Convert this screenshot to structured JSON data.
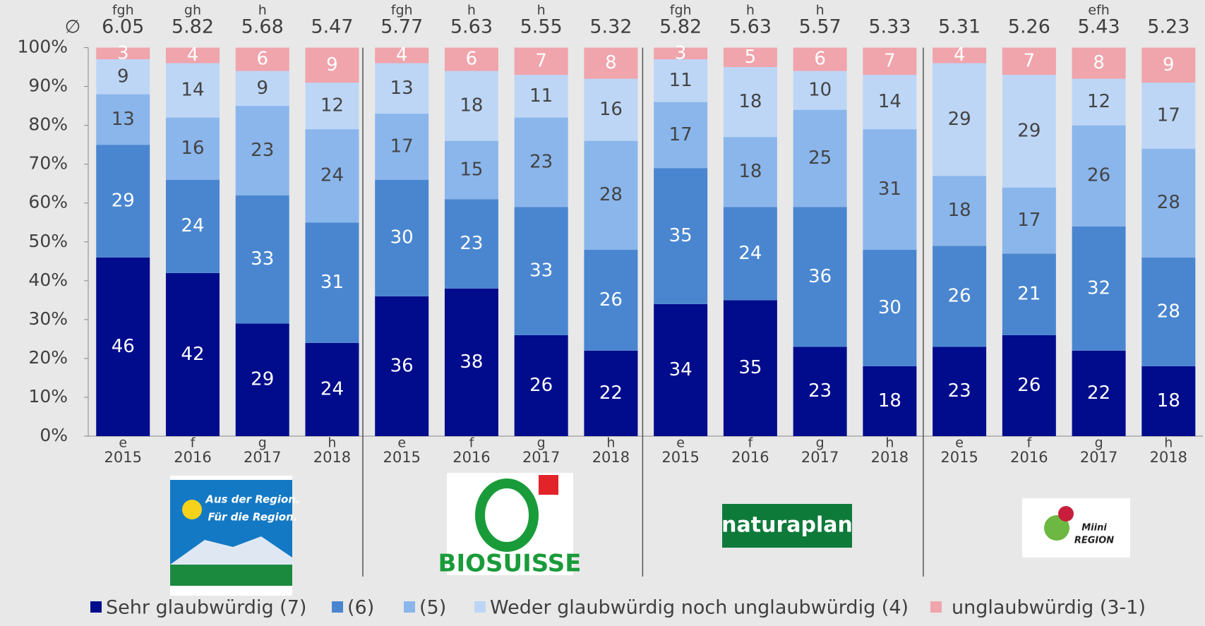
{
  "chart_data": {
    "type": "bar",
    "stacked": true,
    "mean_symbol": "∅",
    "categories": [
      "2015",
      "2016",
      "2017",
      "2018",
      "2015",
      "2016",
      "2017",
      "2018",
      "2015",
      "2016",
      "2017",
      "2018",
      "2015",
      "2016",
      "2017",
      "2018"
    ],
    "category_letters": [
      "e",
      "f",
      "g",
      "h",
      "e",
      "f",
      "g",
      "h",
      "e",
      "f",
      "g",
      "h",
      "e",
      "f",
      "g",
      "h"
    ],
    "means": [
      6.05,
      5.82,
      5.68,
      5.47,
      5.77,
      5.63,
      5.55,
      5.32,
      5.82,
      5.63,
      5.57,
      5.33,
      5.31,
      5.26,
      5.43,
      5.23
    ],
    "mean_letters": [
      "fgh",
      "gh",
      "h",
      null,
      "fgh",
      "h",
      "h",
      null,
      "fgh",
      "h",
      "h",
      null,
      null,
      null,
      "efh",
      null
    ],
    "groups": [
      {
        "logo_text": [
          "Aus der Region.",
          "Für die Region."
        ]
      },
      {
        "logo_text": [
          "BIOSUISSE"
        ]
      },
      {
        "logo_text": [
          "naturaplan"
        ]
      },
      {
        "logo_text": [
          "Miini",
          "REGION"
        ]
      }
    ],
    "series": [
      {
        "name": "Sehr glaubwürdig (7)",
        "color": "#000c8c",
        "label_color": "#ffffff",
        "values": [
          46,
          42,
          29,
          24,
          36,
          38,
          26,
          22,
          34,
          35,
          23,
          18,
          23,
          26,
          22,
          18
        ]
      },
      {
        "name": "(6)",
        "color": "#4a86d0",
        "label_color": "#ffffff",
        "values": [
          29,
          24,
          33,
          31,
          30,
          23,
          33,
          26,
          35,
          24,
          36,
          30,
          26,
          21,
          32,
          28
        ]
      },
      {
        "name": "(5)",
        "color": "#8ab6ec",
        "label_color": "#444444",
        "values": [
          13,
          16,
          23,
          24,
          17,
          15,
          23,
          28,
          17,
          18,
          25,
          31,
          18,
          17,
          26,
          28
        ]
      },
      {
        "name": "Weder glaubwürdig noch unglaubwürdig (4)",
        "color": "#bdd6f6",
        "label_color": "#444444",
        "values": [
          9,
          14,
          9,
          12,
          13,
          18,
          11,
          16,
          11,
          18,
          10,
          14,
          29,
          29,
          12,
          17
        ]
      },
      {
        "name": "unglaubwürdig (3-1)",
        "color": "#f0a4ab",
        "label_color": "#ffffff",
        "values": [
          3,
          4,
          6,
          9,
          4,
          6,
          7,
          8,
          3,
          5,
          6,
          7,
          4,
          7,
          8,
          9
        ]
      }
    ],
    "ylim": [
      0,
      100
    ],
    "yticks": [
      {
        "value": 0,
        "label": "0%"
      },
      {
        "value": 10,
        "label": "10%"
      },
      {
        "value": 20,
        "label": "20%"
      },
      {
        "value": 30,
        "label": "30%"
      },
      {
        "value": 40,
        "label": "40%"
      },
      {
        "value": 50,
        "label": "50%"
      },
      {
        "value": 60,
        "label": "60%"
      },
      {
        "value": 70,
        "label": "70%"
      },
      {
        "value": 80,
        "label": "80%"
      },
      {
        "value": 90,
        "label": "90%"
      },
      {
        "value": 100,
        "label": "100%"
      }
    ]
  }
}
